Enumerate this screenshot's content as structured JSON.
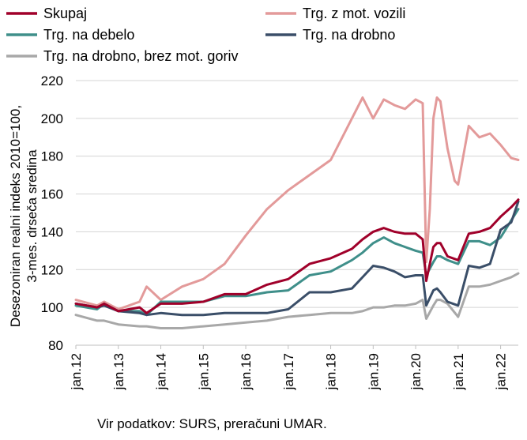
{
  "source_note": "Vir podatkov: SURS, preračuni UMAR.",
  "chart_data": {
    "type": "line",
    "ylabel_lines": [
      "Desezoniran realni indeks 2010=100,",
      "3-mes. drseča sredina"
    ],
    "ylim": [
      80,
      220
    ],
    "yticks": [
      80,
      100,
      120,
      140,
      160,
      180,
      200,
      220
    ],
    "xticks": [
      "jan.12",
      "jan.13",
      "jan.14",
      "jan.15",
      "jan.16",
      "jan.17",
      "jan.18",
      "jan.19",
      "jan.20",
      "jan.21",
      "jan.22"
    ],
    "x_range": [
      "2012-01",
      "2022-06"
    ],
    "grid": "horizontal",
    "legend_position": "top",
    "series": [
      {
        "name": "Skupaj",
        "color": "#a0002a",
        "points": [
          [
            "2012-01",
            102
          ],
          [
            "2012-07",
            100
          ],
          [
            "2012-09",
            102
          ],
          [
            "2013-01",
            98
          ],
          [
            "2013-07",
            100
          ],
          [
            "2013-09",
            97
          ],
          [
            "2014-01",
            102
          ],
          [
            "2014-07",
            102
          ],
          [
            "2015-01",
            103
          ],
          [
            "2015-07",
            107
          ],
          [
            "2016-01",
            107
          ],
          [
            "2016-07",
            112
          ],
          [
            "2017-01",
            115
          ],
          [
            "2017-07",
            123
          ],
          [
            "2018-01",
            126
          ],
          [
            "2018-07",
            131
          ],
          [
            "2018-10",
            136
          ],
          [
            "2019-01",
            140
          ],
          [
            "2019-04",
            142
          ],
          [
            "2019-07",
            140
          ],
          [
            "2019-10",
            139
          ],
          [
            "2020-01",
            139
          ],
          [
            "2020-03",
            136
          ],
          [
            "2020-04",
            114
          ],
          [
            "2020-06",
            132
          ],
          [
            "2020-07",
            134
          ],
          [
            "2020-08",
            134
          ],
          [
            "2020-10",
            127
          ],
          [
            "2021-01",
            125
          ],
          [
            "2021-04",
            139
          ],
          [
            "2021-07",
            140
          ],
          [
            "2021-10",
            142
          ],
          [
            "2022-01",
            148
          ],
          [
            "2022-04",
            153
          ],
          [
            "2022-06",
            157
          ]
        ]
      },
      {
        "name": "Trg. z mot. vozili",
        "color": "#e39a9a",
        "points": [
          [
            "2012-01",
            104
          ],
          [
            "2012-07",
            101
          ],
          [
            "2012-09",
            103
          ],
          [
            "2013-01",
            99
          ],
          [
            "2013-07",
            103
          ],
          [
            "2013-09",
            111
          ],
          [
            "2014-01",
            104
          ],
          [
            "2014-07",
            111
          ],
          [
            "2015-01",
            115
          ],
          [
            "2015-07",
            123
          ],
          [
            "2016-01",
            138
          ],
          [
            "2016-07",
            152
          ],
          [
            "2017-01",
            162
          ],
          [
            "2017-07",
            170
          ],
          [
            "2018-01",
            178
          ],
          [
            "2018-07",
            200
          ],
          [
            "2018-10",
            211
          ],
          [
            "2019-01",
            200
          ],
          [
            "2019-04",
            210
          ],
          [
            "2019-07",
            207
          ],
          [
            "2019-10",
            205
          ],
          [
            "2020-01",
            210
          ],
          [
            "2020-03",
            208
          ],
          [
            "2020-04",
            124
          ],
          [
            "2020-05",
            152
          ],
          [
            "2020-06",
            200
          ],
          [
            "2020-07",
            211
          ],
          [
            "2020-08",
            209
          ],
          [
            "2020-10",
            184
          ],
          [
            "2020-12",
            167
          ],
          [
            "2021-01",
            165
          ],
          [
            "2021-04",
            196
          ],
          [
            "2021-07",
            190
          ],
          [
            "2021-10",
            192
          ],
          [
            "2022-01",
            186
          ],
          [
            "2022-04",
            179
          ],
          [
            "2022-06",
            178
          ]
        ]
      },
      {
        "name": "Trg. na debelo",
        "color": "#3f8f8a",
        "points": [
          [
            "2012-01",
            101
          ],
          [
            "2012-07",
            99
          ],
          [
            "2012-09",
            102
          ],
          [
            "2013-01",
            98
          ],
          [
            "2013-07",
            98
          ],
          [
            "2013-09",
            96
          ],
          [
            "2014-01",
            103
          ],
          [
            "2014-07",
            103
          ],
          [
            "2015-01",
            103
          ],
          [
            "2015-07",
            106
          ],
          [
            "2016-01",
            106
          ],
          [
            "2016-07",
            108
          ],
          [
            "2017-01",
            109
          ],
          [
            "2017-07",
            117
          ],
          [
            "2018-01",
            119
          ],
          [
            "2018-07",
            125
          ],
          [
            "2018-10",
            129
          ],
          [
            "2019-01",
            134
          ],
          [
            "2019-04",
            137
          ],
          [
            "2019-07",
            134
          ],
          [
            "2019-10",
            132
          ],
          [
            "2020-01",
            130
          ],
          [
            "2020-03",
            129
          ],
          [
            "2020-04",
            117
          ],
          [
            "2020-06",
            124
          ],
          [
            "2020-07",
            127
          ],
          [
            "2020-08",
            127
          ],
          [
            "2020-10",
            125
          ],
          [
            "2021-01",
            123
          ],
          [
            "2021-04",
            135
          ],
          [
            "2021-07",
            135
          ],
          [
            "2021-10",
            133
          ],
          [
            "2022-01",
            137
          ],
          [
            "2022-04",
            146
          ],
          [
            "2022-06",
            152
          ]
        ]
      },
      {
        "name": "Trg. na drobno",
        "color": "#3a4e68",
        "points": [
          [
            "2012-01",
            102
          ],
          [
            "2012-07",
            100
          ],
          [
            "2012-09",
            101
          ],
          [
            "2013-01",
            98
          ],
          [
            "2013-07",
            97
          ],
          [
            "2013-09",
            96
          ],
          [
            "2014-01",
            97
          ],
          [
            "2014-07",
            96
          ],
          [
            "2015-01",
            96
          ],
          [
            "2015-07",
            97
          ],
          [
            "2016-01",
            97
          ],
          [
            "2016-07",
            97
          ],
          [
            "2017-01",
            99
          ],
          [
            "2017-07",
            108
          ],
          [
            "2018-01",
            108
          ],
          [
            "2018-07",
            110
          ],
          [
            "2018-10",
            116
          ],
          [
            "2019-01",
            122
          ],
          [
            "2019-04",
            121
          ],
          [
            "2019-07",
            119
          ],
          [
            "2019-10",
            116
          ],
          [
            "2020-01",
            117
          ],
          [
            "2020-03",
            117
          ],
          [
            "2020-04",
            101
          ],
          [
            "2020-06",
            109
          ],
          [
            "2020-07",
            110
          ],
          [
            "2020-08",
            108
          ],
          [
            "2020-10",
            103
          ],
          [
            "2021-01",
            101
          ],
          [
            "2021-04",
            122
          ],
          [
            "2021-07",
            121
          ],
          [
            "2021-10",
            123
          ],
          [
            "2022-01",
            141
          ],
          [
            "2022-04",
            145
          ],
          [
            "2022-06",
            156
          ]
        ]
      },
      {
        "name": "Trg. na drobno, brez mot. goriv",
        "color": "#a8a8a8",
        "points": [
          [
            "2012-01",
            96
          ],
          [
            "2012-07",
            93
          ],
          [
            "2012-09",
            93
          ],
          [
            "2013-01",
            91
          ],
          [
            "2013-07",
            90
          ],
          [
            "2013-09",
            90
          ],
          [
            "2014-01",
            89
          ],
          [
            "2014-07",
            89
          ],
          [
            "2015-01",
            90
          ],
          [
            "2015-07",
            91
          ],
          [
            "2016-01",
            92
          ],
          [
            "2016-07",
            93
          ],
          [
            "2017-01",
            95
          ],
          [
            "2017-07",
            96
          ],
          [
            "2018-01",
            97
          ],
          [
            "2018-07",
            97
          ],
          [
            "2018-10",
            98
          ],
          [
            "2019-01",
            100
          ],
          [
            "2019-04",
            100
          ],
          [
            "2019-07",
            101
          ],
          [
            "2019-10",
            101
          ],
          [
            "2020-01",
            102
          ],
          [
            "2020-03",
            104
          ],
          [
            "2020-04",
            94
          ],
          [
            "2020-06",
            101
          ],
          [
            "2020-07",
            104
          ],
          [
            "2020-08",
            104
          ],
          [
            "2020-10",
            102
          ],
          [
            "2021-01",
            95
          ],
          [
            "2021-04",
            111
          ],
          [
            "2021-07",
            111
          ],
          [
            "2021-10",
            112
          ],
          [
            "2022-01",
            114
          ],
          [
            "2022-04",
            116
          ],
          [
            "2022-06",
            118
          ]
        ]
      }
    ]
  }
}
